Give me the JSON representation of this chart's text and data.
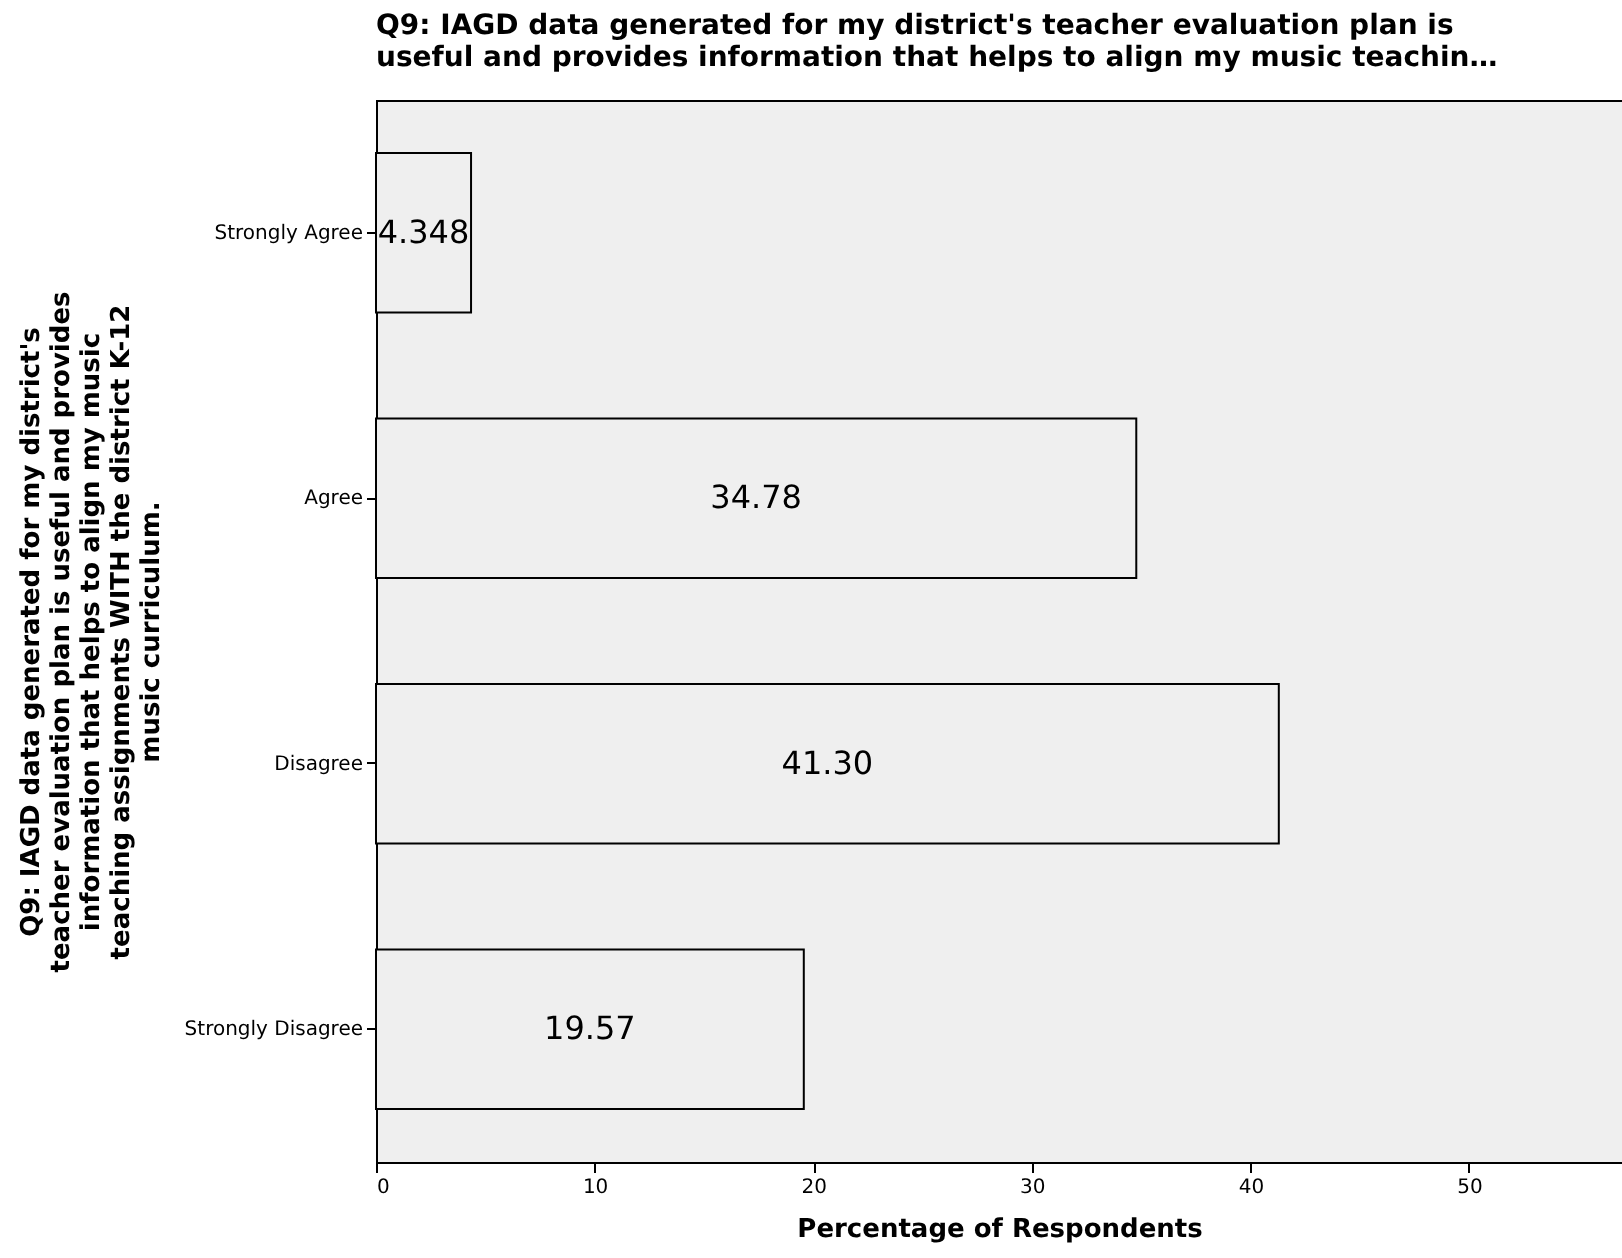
{
  "chart_data": {
    "type": "bar",
    "orientation": "horizontal",
    "title": "Q9: IAGD data generated for my district's teacher evaluation plan is useful and provides information that helps to align my music teachin…",
    "ylabel": "Q9: IAGD data generated for my district's teacher evaluation plan is useful and provides information that helps to align my music teaching assignments WITH the district K-12 music curriculum.",
    "xlabel": "Percentage of Respondents",
    "categories": [
      "Strongly Agree",
      "Agree",
      "Disagree",
      "Strongly Disagree"
    ],
    "values": [
      4.348,
      34.78,
      41.3,
      19.57
    ],
    "value_labels": [
      "4.348",
      "34.78",
      "41.30",
      "19.57"
    ],
    "color": "#efefef",
    "xlim": [
      0,
      57
    ],
    "xticks": [
      0,
      10,
      20,
      30,
      40,
      50
    ],
    "grid": false
  }
}
